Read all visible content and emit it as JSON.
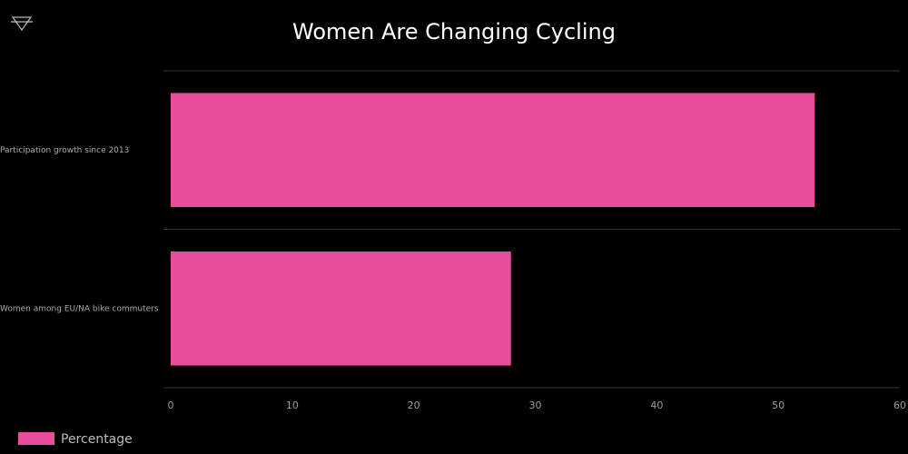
{
  "chart_data": {
    "type": "bar",
    "orientation": "horizontal",
    "title": "Women Are Changing Cycling",
    "categories": [
      "Participation growth since 2013",
      "Women among EU/NA bike commuters"
    ],
    "series": [
      {
        "name": "Percentage",
        "color": "#e84c9b",
        "values": [
          53,
          28
        ]
      }
    ],
    "xlim": [
      0,
      60
    ],
    "xticks": [
      0,
      10,
      20,
      30,
      40,
      50,
      60
    ],
    "legend": "bottom-left"
  }
}
